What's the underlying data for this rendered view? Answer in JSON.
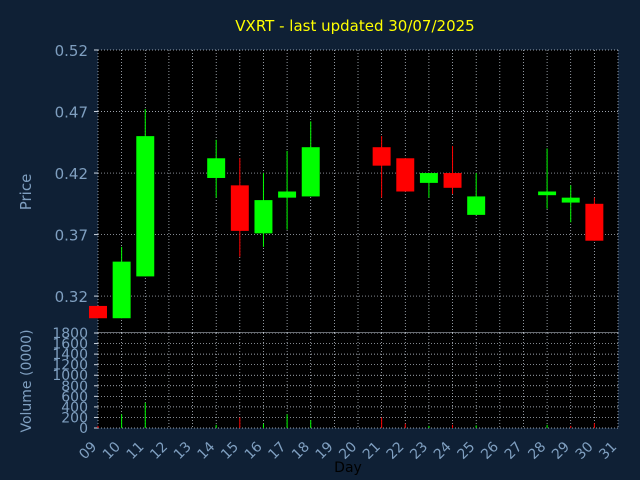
{
  "chart_data": [
    {
      "type": "candlestick",
      "title": "VXRT - last updated 30/07/2025",
      "ylabel": "Price",
      "xlabel": "",
      "ylim": [
        0.29,
        0.52
      ],
      "yticks": [
        "0.32",
        "0.37",
        "0.42",
        "0.47",
        "0.52"
      ],
      "ytick_values": [
        0.32,
        0.37,
        0.42,
        0.47,
        0.52
      ],
      "grid": true,
      "colors": {
        "up": "#00ff00",
        "down": "#ff0000",
        "title": "#ffff00",
        "axis_text": "#7f9fc0",
        "grid": "#cfd8e3",
        "background": "#0f2035",
        "plot_bg": "#000000"
      },
      "candles": [
        {
          "day": 9,
          "open": 0.312,
          "high": 0.312,
          "low": 0.302,
          "close": 0.302
        },
        {
          "day": 10,
          "open": 0.302,
          "high": 0.36,
          "low": 0.302,
          "close": 0.348
        },
        {
          "day": 11,
          "open": 0.336,
          "high": 0.472,
          "low": 0.336,
          "close": 0.45
        },
        {
          "day": 14,
          "open": 0.416,
          "high": 0.447,
          "low": 0.4,
          "close": 0.432
        },
        {
          "day": 15,
          "open": 0.41,
          "high": 0.432,
          "low": 0.352,
          "close": 0.373
        },
        {
          "day": 16,
          "open": 0.371,
          "high": 0.42,
          "low": 0.36,
          "close": 0.398
        },
        {
          "day": 17,
          "open": 0.4,
          "high": 0.438,
          "low": 0.374,
          "close": 0.405
        },
        {
          "day": 18,
          "open": 0.401,
          "high": 0.462,
          "low": 0.401,
          "close": 0.441
        },
        {
          "day": 21,
          "open": 0.441,
          "high": 0.45,
          "low": 0.4,
          "close": 0.426
        },
        {
          "day": 22,
          "open": 0.432,
          "high": 0.432,
          "low": 0.405,
          "close": 0.405
        },
        {
          "day": 23,
          "open": 0.412,
          "high": 0.42,
          "low": 0.4,
          "close": 0.42
        },
        {
          "day": 24,
          "open": 0.42,
          "high": 0.442,
          "low": 0.403,
          "close": 0.408
        },
        {
          "day": 25,
          "open": 0.386,
          "high": 0.42,
          "low": 0.386,
          "close": 0.401
        },
        {
          "day": 28,
          "open": 0.402,
          "high": 0.44,
          "low": 0.391,
          "close": 0.405
        },
        {
          "day": 29,
          "open": 0.396,
          "high": 0.41,
          "low": 0.38,
          "close": 0.4
        },
        {
          "day": 30,
          "open": 0.395,
          "high": 0.4,
          "low": 0.365,
          "close": 0.365
        }
      ]
    },
    {
      "type": "bar",
      "ylabel": "Volume (0000)",
      "xlabel": "Day",
      "ylim": [
        0,
        1800
      ],
      "yticks": [
        "0",
        "200",
        "400",
        "600",
        "800",
        "1000",
        "1200",
        "1400",
        "1600",
        "1800"
      ],
      "ytick_values": [
        0,
        200,
        400,
        600,
        800,
        1000,
        1200,
        1400,
        1600,
        1800
      ],
      "xticks": [
        "09",
        "10",
        "11",
        "12",
        "13",
        "14",
        "15",
        "16",
        "17",
        "18",
        "19",
        "20",
        "21",
        "22",
        "23",
        "24",
        "25",
        "26",
        "27",
        "28",
        "29",
        "30",
        "31"
      ],
      "xtick_values": [
        9,
        10,
        11,
        12,
        13,
        14,
        15,
        16,
        17,
        18,
        19,
        20,
        21,
        22,
        23,
        24,
        25,
        26,
        27,
        28,
        29,
        30,
        31
      ],
      "xlim": [
        9,
        31
      ],
      "grid": true,
      "volumes": [
        {
          "day": 9,
          "value": 40,
          "dir": "down"
        },
        {
          "day": 10,
          "value": 260,
          "dir": "up"
        },
        {
          "day": 11,
          "value": 480,
          "dir": "up"
        },
        {
          "day": 14,
          "value": 60,
          "dir": "up"
        },
        {
          "day": 15,
          "value": 200,
          "dir": "down"
        },
        {
          "day": 16,
          "value": 80,
          "dir": "up"
        },
        {
          "day": 17,
          "value": 260,
          "dir": "up"
        },
        {
          "day": 18,
          "value": 150,
          "dir": "up"
        },
        {
          "day": 21,
          "value": 200,
          "dir": "down"
        },
        {
          "day": 22,
          "value": 80,
          "dir": "down"
        },
        {
          "day": 23,
          "value": 40,
          "dir": "up"
        },
        {
          "day": 24,
          "value": 60,
          "dir": "down"
        },
        {
          "day": 25,
          "value": 50,
          "dir": "up"
        },
        {
          "day": 28,
          "value": 60,
          "dir": "up"
        },
        {
          "day": 29,
          "value": 40,
          "dir": "down"
        },
        {
          "day": 30,
          "value": 90,
          "dir": "down"
        }
      ]
    }
  ]
}
